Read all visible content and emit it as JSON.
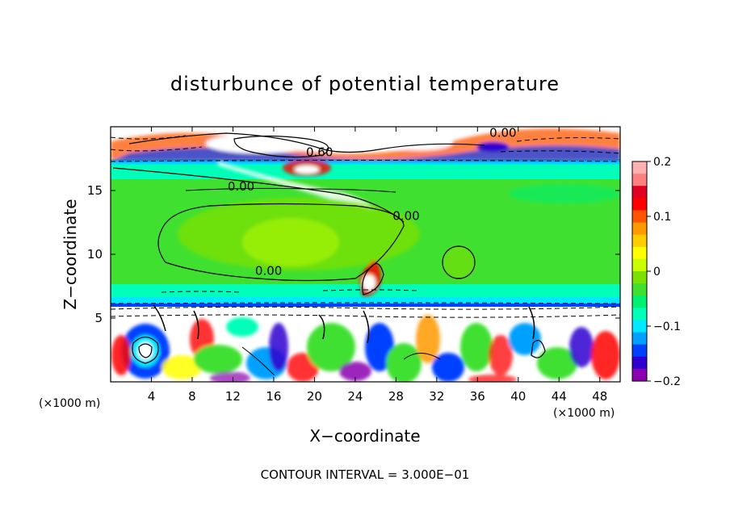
{
  "chart_data": {
    "type": "heatmap",
    "title": "disturbunce of potential temperature",
    "xlabel": "X−coordinate",
    "ylabel": "Z−coordinate",
    "x_unit": "(×1000 m)",
    "z_unit": "(×1000 m)",
    "xlim": [
      0,
      50
    ],
    "zlim": [
      0,
      20
    ],
    "x_ticks": [
      4,
      8,
      12,
      16,
      20,
      24,
      28,
      32,
      36,
      40,
      44,
      48
    ],
    "z_ticks": [
      5,
      10,
      15
    ],
    "colorbar": {
      "range": [
        -0.2,
        0.2
      ],
      "ticks": [
        {
          "value": 0.2,
          "label": "0.2"
        },
        {
          "value": 0.1,
          "label": "0.1"
        },
        {
          "value": 0,
          "label": "0"
        },
        {
          "value": -0.1,
          "label": "−0.1"
        },
        {
          "value": -0.2,
          "label": "−0.2"
        }
      ],
      "colors": [
        "#8b00b0",
        "#3000d0",
        "#0040ff",
        "#00a0ff",
        "#00e8ff",
        "#00ffb8",
        "#00f070",
        "#40e030",
        "#7ce000",
        "#c8ff00",
        "#ffff00",
        "#ffcc00",
        "#ff9900",
        "#ff5500",
        "#ff0000",
        "#e00020",
        "#ff8080",
        "#ffb0b0"
      ]
    },
    "contour_labels": [
      {
        "text": "0.60",
        "x": 20.5,
        "z": 17.7
      },
      {
        "text": "0.00",
        "x": 38.5,
        "z": 19.2
      },
      {
        "text": "0.00",
        "x": 12.8,
        "z": 15.0
      },
      {
        "text": "0.00",
        "x": 29.0,
        "z": 12.7
      },
      {
        "text": "0.00",
        "x": 15.5,
        "z": 8.4
      }
    ],
    "contour_interval": "CONTOUR INTERVAL = 3.000E−01"
  }
}
